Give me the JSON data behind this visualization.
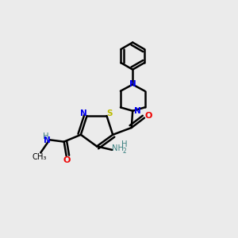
{
  "bg_color": "#ebebeb",
  "atom_colors": {
    "C": "#000000",
    "N": "#0000ee",
    "O": "#ee0000",
    "S": "#bbbb00",
    "H": "#3a8080"
  },
  "bond_color": "#000000",
  "bond_width": 1.8,
  "figsize": [
    3.0,
    3.0
  ],
  "dpi": 100
}
